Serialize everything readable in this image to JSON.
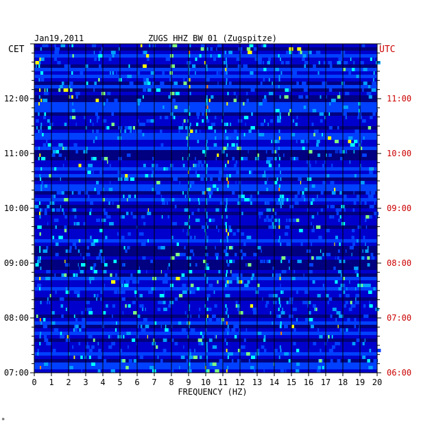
{
  "chart_data": {
    "type": "heatmap",
    "date": "Jan19,2011",
    "title": "ZUGS HHZ BW 01 (Zugspitze)",
    "left_axis_label": "CET",
    "right_axis_label": "UTC",
    "xlabel": "FREQUENCY (HZ)",
    "x_ticks": [
      "0",
      "1",
      "2",
      "3",
      "4",
      "5",
      "6",
      "7",
      "8",
      "9",
      "10",
      "11",
      "12",
      "13",
      "14",
      "15",
      "16",
      "17",
      "18",
      "19",
      "20"
    ],
    "xlim": [
      0,
      20
    ],
    "time_range_cet": [
      "07:00",
      "13:00"
    ],
    "left_time_labels": [
      "12:00",
      "11:00",
      "10:00",
      "09:00",
      "08:00",
      "07:00"
    ],
    "right_time_labels": [
      "11:00",
      "10:00",
      "09:00",
      "08:00",
      "07:00",
      "06:00"
    ],
    "colormap": [
      "#000080",
      "#0000cd",
      "#0040ff",
      "#00a0ff",
      "#00ffff",
      "#80ff80",
      "#ffff00",
      "#ff8000",
      "#ff0000"
    ],
    "footnote": "*",
    "colors": {
      "left_axis": "#000000",
      "right_axis": "#cc0000",
      "background": "#000080"
    }
  }
}
